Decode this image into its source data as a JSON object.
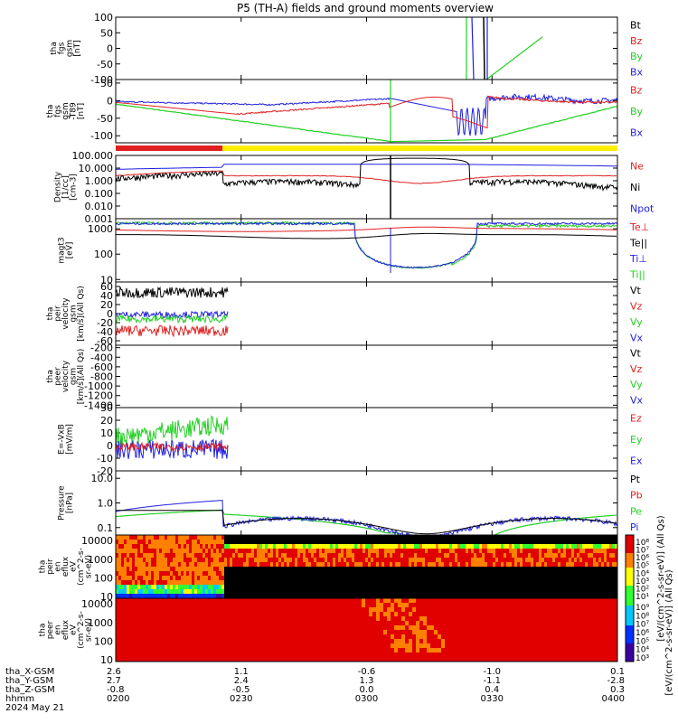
{
  "title": "P5 (TH-A) fields and ground moments overview",
  "colors": {
    "black": "#000000",
    "red": "#e02020",
    "green": "#22d022",
    "blue": "#1f1fe0",
    "yellow": "#ffee00"
  },
  "chart_data": {
    "type": "line",
    "time_axis": {
      "ticks": [
        "0200",
        "0230",
        "0300",
        "0330",
        "0400"
      ],
      "date": "2024 May 21",
      "rows": [
        {
          "label": "tha_X-GSM",
          "values": [
            "2.6",
            "1.1",
            "-0.6",
            "-1.0",
            "0.1"
          ]
        },
        {
          "label": "tha_Y-GSM",
          "values": [
            "2.7",
            "2.4",
            "1.3",
            "-1.1",
            "-2.8"
          ]
        },
        {
          "label": "tha_Z-GSM",
          "values": [
            "-0.8",
            "-0.5",
            "0.0",
            "0.4",
            "0.3"
          ]
        },
        {
          "label": "hhmm",
          "values": [
            "0200",
            "0230",
            "0300",
            "0330",
            "0400"
          ]
        }
      ]
    },
    "panels": [
      {
        "id": "fgs",
        "ylabel": [
          "tha",
          "fgs",
          "gsm",
          "[nT]"
        ],
        "yscale": "linear",
        "ylim": [
          -100,
          100
        ],
        "ticks": [
          "100",
          "50",
          "0",
          "-50",
          "-100"
        ],
        "tick_values": [
          100,
          50,
          0,
          -50,
          -100
        ],
        "legend": [
          {
            "text": "Bt",
            "color": "#000000"
          },
          {
            "text": "Bz",
            "color": "#e02020"
          },
          {
            "text": "By",
            "color": "#22d022"
          },
          {
            "text": "Bx",
            "color": "#1f1fe0"
          }
        ]
      },
      {
        "id": "fgs_dc",
        "ylabel": [
          "tha",
          "fgs",
          "gsm",
          "-T89",
          "[nT]"
        ],
        "yscale": "linear",
        "ylim": [
          -120,
          60
        ],
        "ticks": [
          "50",
          "0",
          "-50",
          "-100"
        ],
        "tick_values": [
          50,
          0,
          -50,
          -100
        ],
        "legend": [
          {
            "text": "Bz",
            "color": "#e02020"
          },
          {
            "text": "By",
            "color": "#22d022"
          },
          {
            "text": "Bx",
            "color": "#1f1fe0"
          }
        ]
      },
      {
        "id": "density",
        "ylabel": [
          "Density",
          "[1/cc]",
          "[cm-3]"
        ],
        "yscale": "log",
        "ylim": [
          0.001,
          100
        ],
        "ticks": [
          "100.000",
          "10.000",
          "1.000",
          "0.100",
          "0.010",
          "0.001"
        ],
        "tick_values": [
          100,
          10,
          1,
          0.1,
          0.01,
          0.001
        ],
        "legend": [
          {
            "text": "Ne",
            "color": "#e02020"
          },
          {
            "text": "Ni",
            "color": "#000000"
          },
          {
            "text": "Npot",
            "color": "#1f1fe0"
          }
        ]
      },
      {
        "id": "temp",
        "ylabel": [
          "magt3",
          "[eV]"
        ],
        "yscale": "log",
        "ylim": [
          8,
          2500
        ],
        "ticks": [
          "1000",
          "100",
          "10"
        ],
        "tick_values": [
          1000,
          100,
          10
        ],
        "legend": [
          {
            "text": "Te⊥",
            "color": "#e02020"
          },
          {
            "text": "Te||",
            "color": "#000000"
          },
          {
            "text": "Ti⊥",
            "color": "#1f1fe0"
          },
          {
            "text": "Ti||",
            "color": "#22d022"
          }
        ]
      },
      {
        "id": "peir_v",
        "ylabel": [
          "tha",
          "peir",
          "velocity",
          "gsm",
          "[km/s](All Qs)"
        ],
        "yscale": "linear",
        "ylim": [
          -70,
          70
        ],
        "ticks": [
          "60",
          "40",
          "20",
          "0",
          "-20",
          "-40",
          "-60"
        ],
        "tick_values": [
          60,
          40,
          20,
          0,
          -20,
          -40,
          -60
        ],
        "legend": [
          {
            "text": "Vt",
            "color": "#000000"
          },
          {
            "text": "Vz",
            "color": "#e02020"
          },
          {
            "text": "Vy",
            "color": "#22d022"
          },
          {
            "text": "Vx",
            "color": "#1f1fe0"
          }
        ]
      },
      {
        "id": "peer_v",
        "ylabel": [
          "tha",
          "peer",
          "velocity",
          "gsm",
          "[km/s](All Qs)"
        ],
        "yscale": "linear",
        "ylim": [
          -1450,
          -150
        ],
        "ticks": [
          "-200",
          "-400",
          "-600",
          "-800",
          "-1000",
          "-1200",
          "-1400"
        ],
        "tick_values": [
          -200,
          -400,
          -600,
          -800,
          -1000,
          -1200,
          -1400
        ],
        "legend": [
          {
            "text": "Vt",
            "color": "#000000"
          },
          {
            "text": "Vz",
            "color": "#e02020"
          },
          {
            "text": "Vy",
            "color": "#22d022"
          },
          {
            "text": "Vx",
            "color": "#1f1fe0"
          }
        ]
      },
      {
        "id": "efield",
        "ylabel": [
          "E=-VxB",
          "[mV/m]"
        ],
        "yscale": "linear",
        "ylim": [
          -20,
          30
        ],
        "ticks": [
          "30",
          "20",
          "10",
          "0",
          "-10",
          "-20"
        ],
        "tick_values": [
          30,
          20,
          10,
          0,
          -10,
          -20
        ],
        "legend": [
          {
            "text": "Ez",
            "color": "#e02020"
          },
          {
            "text": "Ey",
            "color": "#22d022"
          },
          {
            "text": "Ex",
            "color": "#1f1fe0"
          }
        ]
      },
      {
        "id": "pressure",
        "ylabel": [
          "Pressure",
          "[nPa]"
        ],
        "yscale": "log",
        "ylim": [
          0.05,
          20
        ],
        "ticks": [
          "10.0",
          "1.0",
          "0.1"
        ],
        "tick_values": [
          10,
          1,
          0.1
        ],
        "legend": [
          {
            "text": "Pt",
            "color": "#000000"
          },
          {
            "text": "Pb",
            "color": "#e02020"
          },
          {
            "text": "Pe",
            "color": "#22d022"
          },
          {
            "text": "Pi",
            "color": "#1f1fe0"
          }
        ]
      },
      {
        "id": "peir_flux",
        "ylabel": [
          "tha",
          "peir",
          "en",
          "eflux",
          "eV",
          "(cm^2-s-",
          "sr-eV)"
        ],
        "yscale": "log",
        "ylim": [
          8,
          20000
        ],
        "ticks": [
          "10000",
          "1000",
          "100",
          "10"
        ],
        "tick_values": [
          10000,
          1000,
          100,
          10
        ]
      },
      {
        "id": "peer_flux",
        "ylabel": [
          "tha",
          "peer",
          "en",
          "eflux",
          "eV",
          "(cm^2-s-",
          "sr-eV)"
        ],
        "yscale": "log",
        "ylim": [
          8,
          20000
        ],
        "ticks": [
          "10000",
          "1000",
          "100",
          "10"
        ],
        "tick_values": [
          10000,
          1000,
          100,
          10
        ]
      }
    ],
    "colorbars": [
      {
        "label": "[eV/(cm^2-s-sr-eV)] (All Qs)",
        "ticks": [
          "10⁸",
          "10⁷",
          "10⁶",
          "10⁵",
          "10⁴",
          "10³",
          "10²",
          "10¹"
        ]
      },
      {
        "label": "[eV/(cm^2-s-sr-eV)] (All Qs)",
        "ticks": [
          "10⁹",
          "10⁸",
          "10⁷",
          "10⁶",
          "10⁵",
          "10⁴",
          "10³"
        ]
      }
    ]
  }
}
